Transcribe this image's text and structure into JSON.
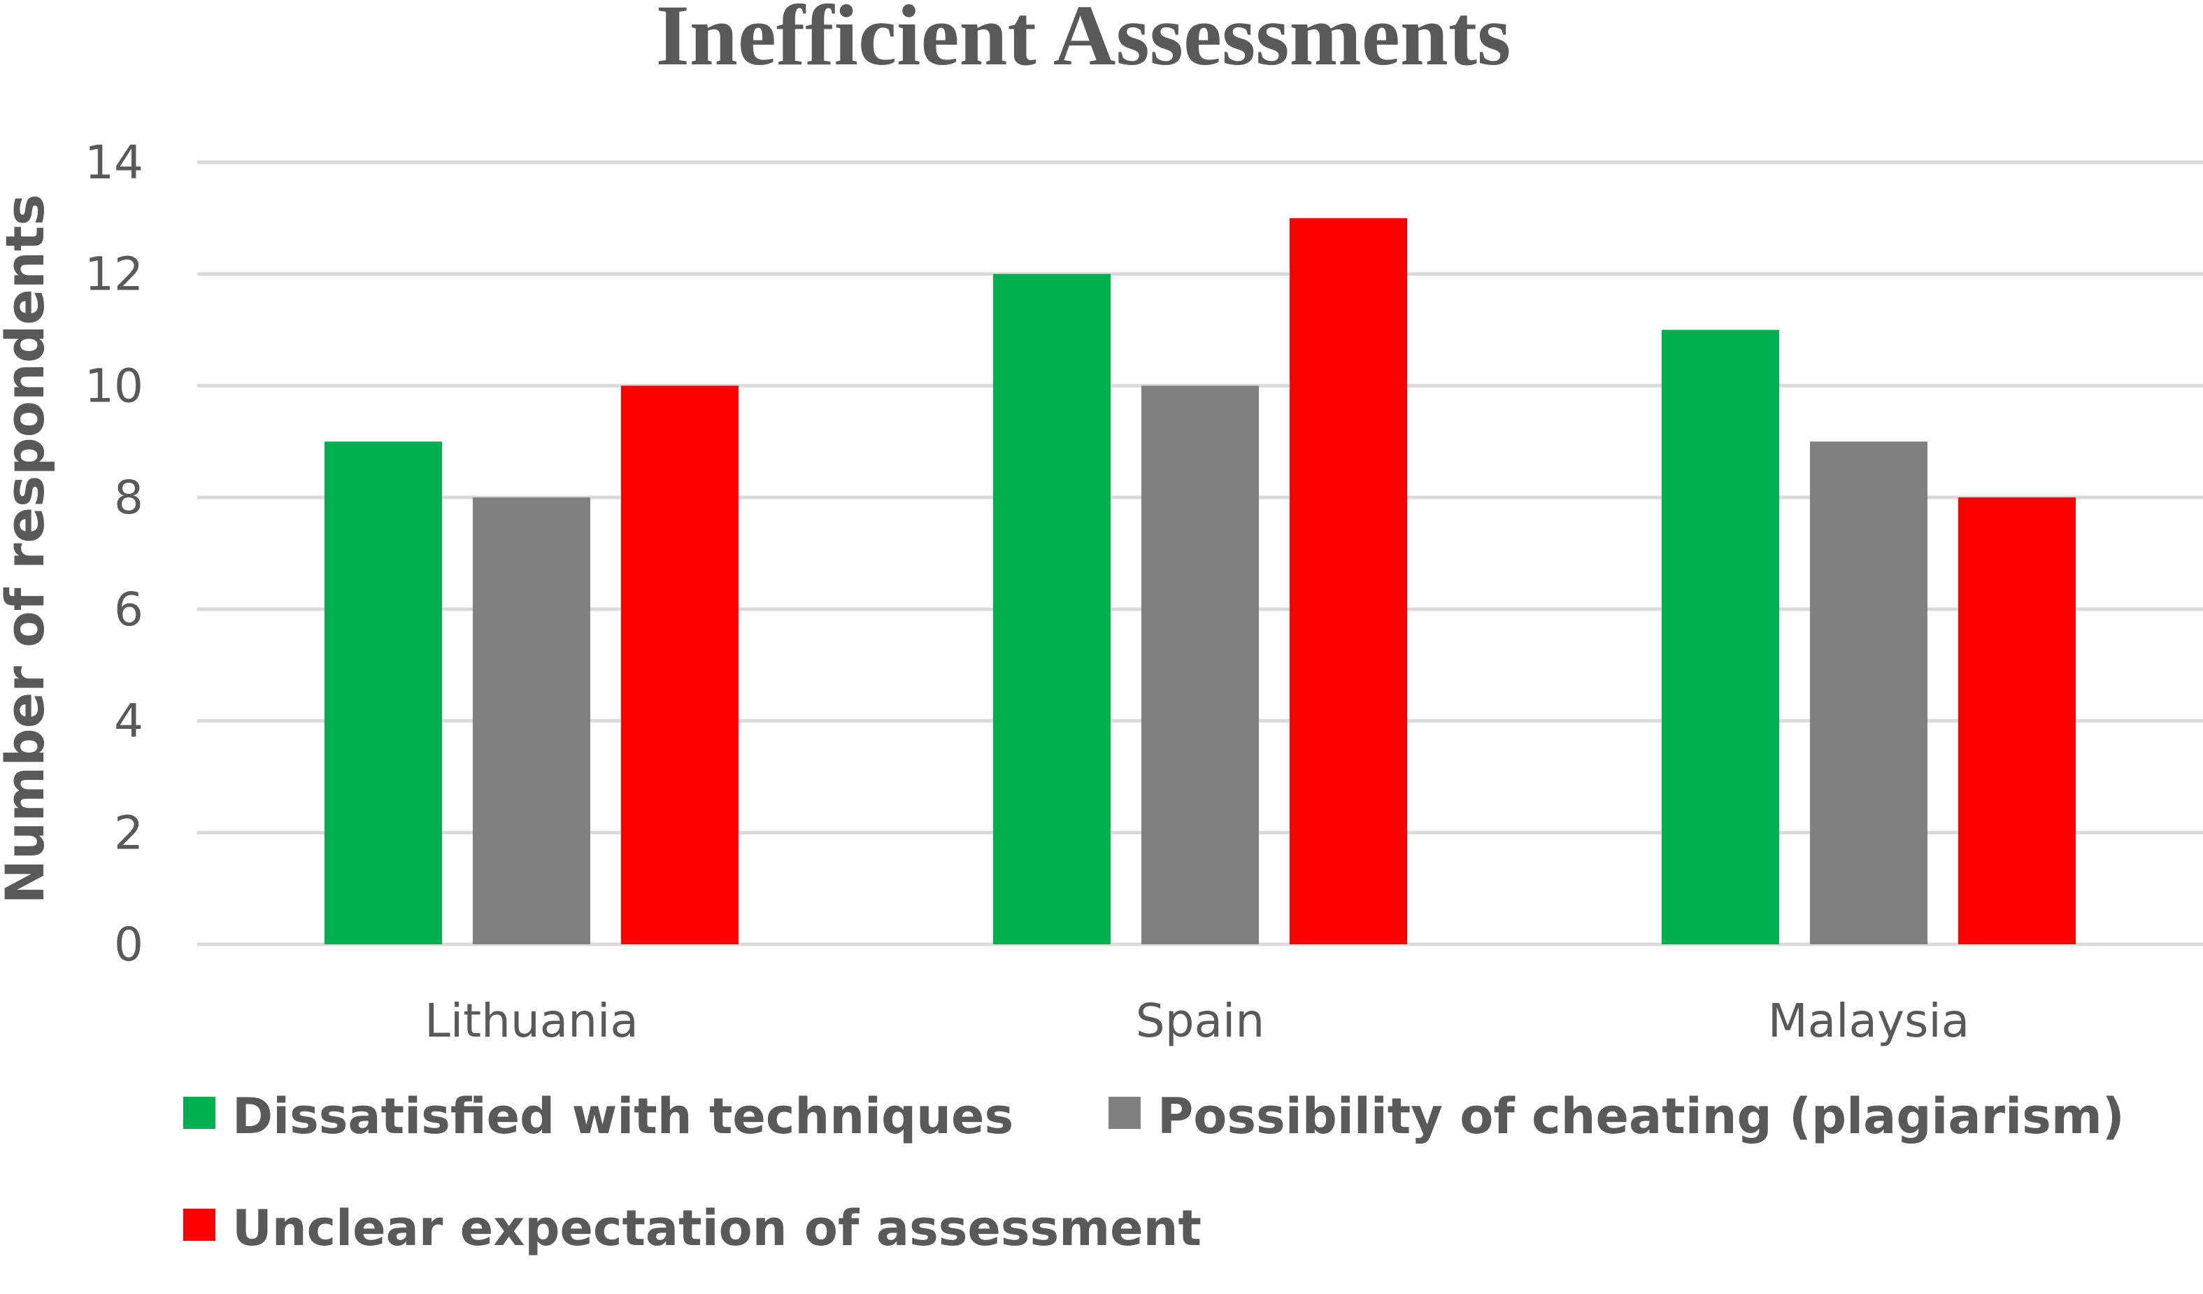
{
  "chart_data": {
    "type": "bar",
    "title": "Inefficient Assessments",
    "xlabel": "",
    "ylabel": "Number of respondents",
    "ylim": [
      0,
      14
    ],
    "yticks": [
      0,
      2,
      4,
      6,
      8,
      10,
      12,
      14
    ],
    "grid": true,
    "legend_position": "bottom",
    "categories": [
      "Lithuania",
      "Spain",
      "Malaysia"
    ],
    "series": [
      {
        "name": "Dissatisfied with techniques",
        "color": "#00b050",
        "values": [
          9,
          12,
          11
        ]
      },
      {
        "name": "Possibility of cheating (plagiarism)",
        "color": "#808080",
        "values": [
          8,
          10,
          9
        ]
      },
      {
        "name": "Unclear expectation of assessment",
        "color": "#ff0000",
        "values": [
          10,
          13,
          8
        ]
      }
    ]
  }
}
